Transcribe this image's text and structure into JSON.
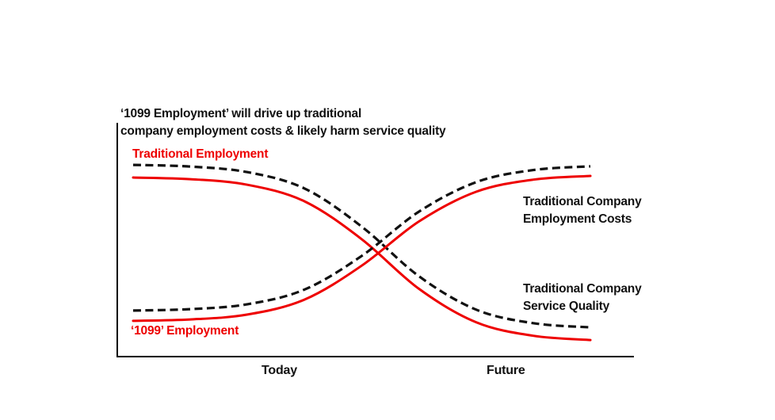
{
  "page": {
    "background": "#ffffff"
  },
  "colors": {
    "accent_red": "#ee0000",
    "ink": "#111111",
    "axis": "#000000"
  },
  "chart": {
    "title_lines": [
      "‘1099 Employment’ will drive up traditional",
      "company employment costs & likely harm service quality"
    ],
    "labels": {
      "traditional_employment": "Traditional Employment",
      "employment_1099": "‘1099’ Employment",
      "employment_costs_lines": [
        "Traditional Company",
        "Employment Costs"
      ],
      "service_quality_lines": [
        "Traditional Company",
        "Service Quality"
      ]
    },
    "x_ticks": [
      "Today",
      "Future"
    ]
  },
  "chart_data": {
    "type": "line",
    "title": "‘1099 Employment’ will drive up traditional company employment costs & likely harm service quality",
    "xlabel": "",
    "ylabel": "",
    "x_axis_labels": [
      "Today",
      "Future"
    ],
    "grid": false,
    "legend": "inline-annotations",
    "y_range_normalized": [
      0,
      1
    ],
    "x_normalized": [
      0,
      0.125,
      0.25,
      0.375,
      0.5,
      0.625,
      0.75,
      0.875,
      1
    ],
    "series": [
      {
        "id": "traditional-employment",
        "name": "Traditional Employment",
        "color": "#ee0000",
        "style": "solid",
        "trend": "falling sigmoid",
        "values": [
          0.766,
          0.759,
          0.735,
          0.664,
          0.502,
          0.29,
          0.147,
          0.089,
          0.071
        ]
      },
      {
        "id": "service-quality",
        "name": "Traditional Company Service Quality",
        "color": "#111111",
        "style": "dashed",
        "trend": "falling sigmoid",
        "values": [
          0.82,
          0.813,
          0.789,
          0.719,
          0.556,
          0.344,
          0.201,
          0.143,
          0.125
        ]
      },
      {
        "id": "employment-1099",
        "name": "‘1099’ Employment",
        "color": "#ee0000",
        "style": "solid",
        "trend": "rising sigmoid",
        "values": [
          0.153,
          0.159,
          0.18,
          0.244,
          0.389,
          0.578,
          0.705,
          0.757,
          0.773
        ]
      },
      {
        "id": "employment-costs",
        "name": "Traditional Company Employment Costs",
        "color": "#111111",
        "style": "dashed",
        "trend": "rising sigmoid",
        "values": [
          0.197,
          0.203,
          0.224,
          0.287,
          0.431,
          0.62,
          0.746,
          0.798,
          0.814
        ]
      }
    ],
    "crossover_x_normalized": 0.55
  }
}
